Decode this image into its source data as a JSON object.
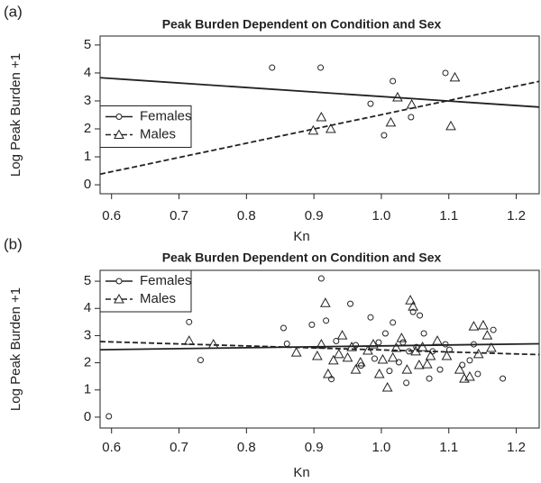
{
  "chart_data": [
    {
      "type": "scatter",
      "panel_label": "(a)",
      "title": "Peak Burden Dependent on Condition and Sex",
      "x_label": "Kn",
      "y_label": "Log Peak Burden +1",
      "xlim": [
        0.583,
        1.234
      ],
      "ylim": [
        -0.32,
        5.32
      ],
      "xticks": [
        0.6,
        0.7,
        0.8,
        0.9,
        {
          "value": 1,
          "label": "1.0"
        },
        1.1,
        1.2
      ],
      "yticks": [
        0,
        1,
        2,
        3,
        4,
        5
      ],
      "legend": "center left",
      "series": [
        {
          "name": "Females",
          "marker": "circle",
          "dash": "solid",
          "color": "#222",
          "x": [
            0.838,
            0.91,
            0.984,
            1.004,
            1.017,
            1.044,
            1.095
          ],
          "values": [
            4.19,
            4.19,
            2.9,
            1.77,
            3.71,
            2.42,
            4.0
          ],
          "fit": {
            "x": [
              0.583,
              1.234
            ],
            "values": [
              3.83,
              2.78
            ]
          }
        },
        {
          "name": "Males",
          "marker": "triangle",
          "dash": "dashed",
          "color": "#222",
          "x": [
            0.911,
            0.899,
            0.925,
            1.014,
            1.024,
            1.045,
            1.109,
            1.103
          ],
          "values": [
            2.42,
            1.94,
            2.0,
            2.23,
            3.13,
            2.87,
            3.84,
            2.1
          ],
          "fit": {
            "x": [
              0.583,
              1.234
            ],
            "values": [
              0.38,
              3.7
            ]
          }
        }
      ]
    },
    {
      "type": "scatter",
      "panel_label": "(b)",
      "title": "Peak Burden Dependent on Condition and Sex",
      "x_label": "Kn",
      "y_label": "Log Peak Burden +1",
      "xlim": [
        0.583,
        1.234
      ],
      "ylim": [
        -0.4,
        5.4
      ],
      "xticks": [
        0.6,
        0.7,
        0.8,
        0.9,
        {
          "value": 1,
          "label": "1.0"
        },
        1.1,
        1.2
      ],
      "yticks": [
        0,
        1,
        2,
        3,
        4,
        5
      ],
      "legend": "upper left",
      "series": [
        {
          "name": "Females",
          "marker": "circle",
          "dash": "solid",
          "color": "#222",
          "x": [
            0.596,
            0.715,
            0.732,
            0.855,
            0.86,
            0.897,
            0.911,
            0.918,
            0.926,
            0.933,
            0.954,
            0.962,
            0.97,
            0.984,
            0.99,
            0.996,
            1.006,
            1.012,
            1.017,
            1.026,
            1.032,
            1.037,
            1.041,
            1.047,
            1.052,
            1.057,
            1.063,
            1.071,
            1.076,
            1.087,
            1.095,
            1.101,
            1.12,
            1.131,
            1.137,
            1.143,
            1.166,
            1.18
          ],
          "values": [
            0.03,
            3.5,
            2.1,
            3.28,
            2.7,
            3.4,
            5.1,
            3.55,
            1.4,
            2.8,
            4.17,
            2.65,
            1.9,
            3.67,
            2.15,
            2.75,
            3.08,
            1.7,
            3.48,
            2.02,
            2.75,
            1.26,
            2.42,
            3.87,
            2.58,
            3.74,
            3.08,
            1.42,
            2.42,
            1.75,
            2.68,
            2.48,
            1.92,
            2.09,
            2.68,
            1.59,
            3.21,
            1.42
          ],
          "fit": {
            "x": [
              0.583,
              1.234
            ],
            "values": [
              2.48,
              2.7
            ]
          }
        },
        {
          "name": "Males",
          "marker": "triangle",
          "dash": "dashed",
          "color": "#222",
          "x": [
            0.715,
            0.751,
            0.874,
            0.905,
            0.911,
            0.917,
            0.921,
            0.929,
            0.937,
            0.942,
            0.95,
            0.956,
            0.962,
            0.969,
            0.98,
            0.988,
            0.997,
            1.002,
            1.009,
            1.017,
            1.022,
            1.03,
            1.038,
            1.043,
            1.047,
            1.051,
            1.056,
            1.061,
            1.068,
            1.073,
            1.083,
            1.097,
            1.116,
            1.123,
            1.131,
            1.137,
            1.144,
            1.151,
            1.163,
            1.157
          ],
          "values": [
            2.81,
            2.68,
            2.38,
            2.25,
            2.68,
            4.2,
            1.59,
            2.09,
            2.32,
            3.01,
            2.19,
            2.58,
            1.75,
            2.02,
            2.45,
            2.68,
            1.59,
            2.12,
            1.09,
            2.19,
            2.55,
            2.91,
            1.75,
            4.3,
            4.07,
            2.42,
            1.92,
            2.58,
            1.95,
            2.25,
            2.81,
            2.25,
            1.75,
            1.42,
            1.49,
            3.34,
            2.32,
            3.38,
            2.55,
            3.01
          ],
          "fit": {
            "x": [
              0.583,
              1.234
            ],
            "values": [
              2.78,
              2.3
            ]
          }
        }
      ]
    }
  ]
}
